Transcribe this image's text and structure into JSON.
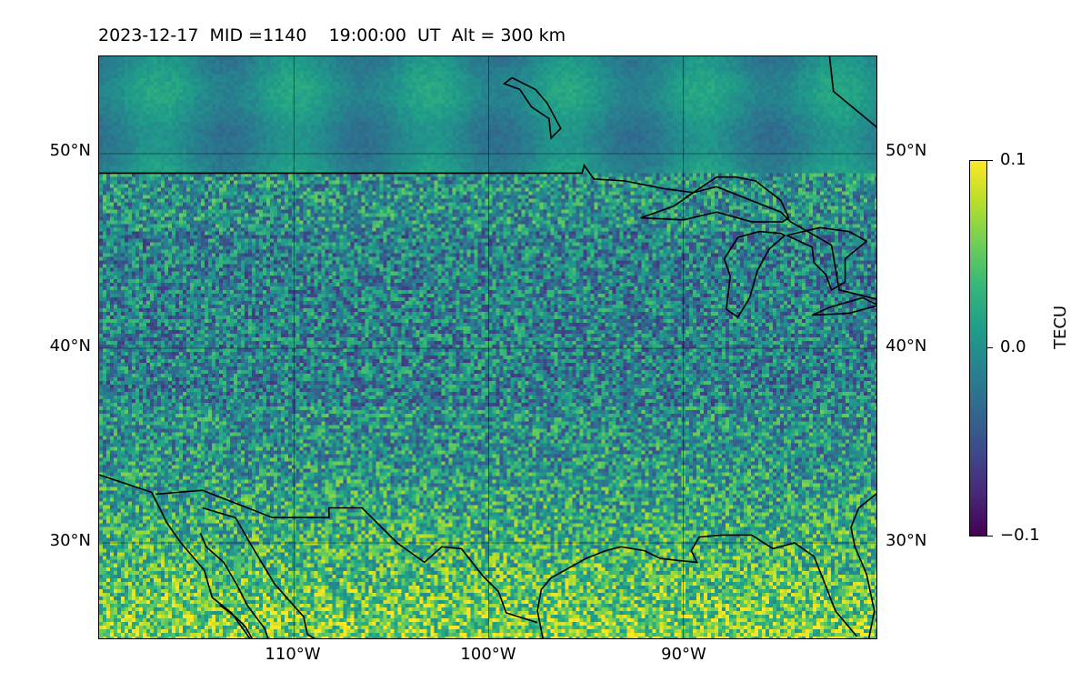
{
  "title": "2023-12-17  MID =1140    19:00:00  UT  Alt = 300 km",
  "map": {
    "extent": {
      "lon_min": -120,
      "lon_max": -80,
      "lat_min": 25,
      "lat_max": 55
    },
    "variable": "TECU",
    "colormap": "viridis",
    "colors": {
      "low": "#440154",
      "mid": "#21918c",
      "high": "#fde725"
    },
    "lat_labels": [
      {
        "value": 50,
        "label": "50°N"
      },
      {
        "value": 40,
        "label": "40°N"
      },
      {
        "value": 30,
        "label": "30°N"
      }
    ],
    "lon_labels": [
      {
        "value": -110,
        "label": "110°W"
      },
      {
        "value": -100,
        "label": "100°W"
      },
      {
        "value": -90,
        "label": "90°W"
      }
    ],
    "gridlines": true,
    "coastlines": true
  },
  "colorbar": {
    "label": "TECU",
    "ticks": [
      {
        "value": 0.1,
        "label": "0.1"
      },
      {
        "value": 0.0,
        "label": "0.0"
      },
      {
        "value": -0.1,
        "label": "−0.1"
      }
    ],
    "range": [
      -0.1,
      0.1
    ]
  }
}
